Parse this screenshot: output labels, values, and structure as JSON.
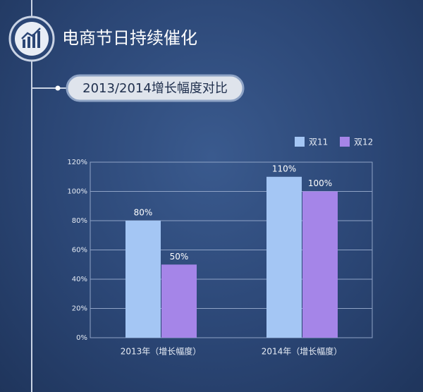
{
  "chart_data": {
    "type": "bar",
    "title": "电商节日持续催化",
    "subtitle": "2013/2014增长幅度对比",
    "categories": [
      "2013年（增长幅度）",
      "2014年（增长幅度）"
    ],
    "series": [
      {
        "name": "双11",
        "color": "#a4c6f4",
        "values": [
          80,
          110
        ],
        "value_labels": [
          "80%",
          "110%"
        ]
      },
      {
        "name": "双12",
        "color": "#a585e8",
        "values": [
          50,
          100
        ],
        "value_labels": [
          "50%",
          "100%"
        ]
      }
    ],
    "ylim": [
      0,
      120
    ],
    "yticks": [
      {
        "value": 0,
        "label": "0%"
      },
      {
        "value": 20,
        "label": "20%"
      },
      {
        "value": 40,
        "label": "40%"
      },
      {
        "value": 60,
        "label": "60%"
      },
      {
        "value": 80,
        "label": "80%"
      },
      {
        "value": 100,
        "label": "100%"
      },
      {
        "value": 120,
        "label": "120%"
      }
    ],
    "grid": true,
    "legend": "top-right"
  }
}
